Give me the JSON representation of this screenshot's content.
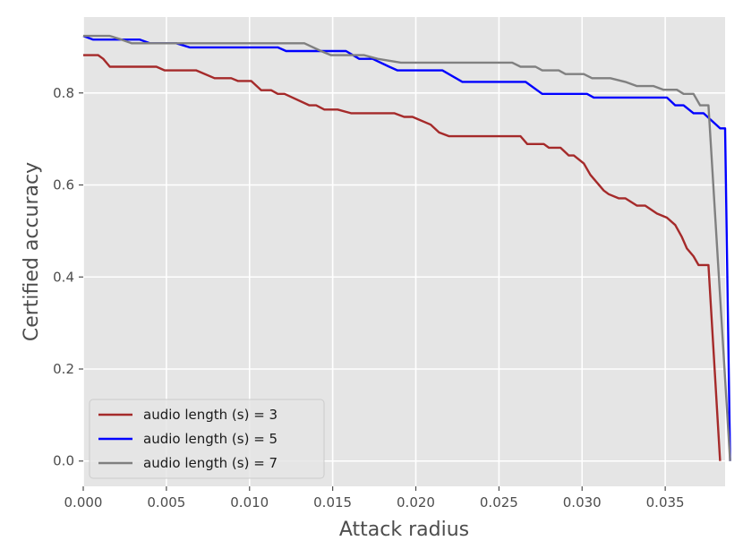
{
  "chart_data": {
    "type": "line",
    "xlabel": "Attack radius",
    "ylabel": "Certified accuracy",
    "xlim": [
      0.0,
      0.0386
    ],
    "ylim": [
      -0.055,
      0.965
    ],
    "xticks": [
      0.0,
      0.005,
      0.01,
      0.015,
      0.02,
      0.025,
      0.03,
      0.035
    ],
    "xtick_labels": [
      "0.000",
      "0.005",
      "0.010",
      "0.015",
      "0.020",
      "0.025",
      "0.030",
      "0.035"
    ],
    "yticks": [
      0.0,
      0.2,
      0.4,
      0.6,
      0.8
    ],
    "ytick_labels": [
      "0.0",
      "0.2",
      "0.4",
      "0.6",
      "0.8"
    ],
    "grid": true,
    "legend": {
      "position": "lower-left"
    },
    "series": [
      {
        "name": "audio length (s) = 3",
        "color": "#a52a2a",
        "points": [
          [
            0.0,
            0.882
          ],
          [
            0.0009,
            0.882
          ],
          [
            0.0012,
            0.874
          ],
          [
            0.0016,
            0.857
          ],
          [
            0.0044,
            0.857
          ],
          [
            0.0049,
            0.849
          ],
          [
            0.0068,
            0.849
          ],
          [
            0.0079,
            0.832
          ],
          [
            0.0089,
            0.832
          ],
          [
            0.0093,
            0.826
          ],
          [
            0.0101,
            0.826
          ],
          [
            0.0107,
            0.806
          ],
          [
            0.0113,
            0.806
          ],
          [
            0.0117,
            0.798
          ],
          [
            0.0121,
            0.798
          ],
          [
            0.0136,
            0.773
          ],
          [
            0.014,
            0.773
          ],
          [
            0.0145,
            0.764
          ],
          [
            0.0153,
            0.764
          ],
          [
            0.0161,
            0.756
          ],
          [
            0.0187,
            0.756
          ],
          [
            0.0193,
            0.748
          ],
          [
            0.0198,
            0.748
          ],
          [
            0.0209,
            0.731
          ],
          [
            0.0214,
            0.714
          ],
          [
            0.022,
            0.706
          ],
          [
            0.0263,
            0.706
          ],
          [
            0.0267,
            0.689
          ],
          [
            0.0277,
            0.689
          ],
          [
            0.028,
            0.681
          ],
          [
            0.0287,
            0.681
          ],
          [
            0.0292,
            0.664
          ],
          [
            0.0295,
            0.664
          ],
          [
            0.0301,
            0.647
          ],
          [
            0.0305,
            0.622
          ],
          [
            0.0313,
            0.588
          ],
          [
            0.0316,
            0.58
          ],
          [
            0.0322,
            0.571
          ],
          [
            0.0326,
            0.571
          ],
          [
            0.0333,
            0.555
          ],
          [
            0.0338,
            0.555
          ],
          [
            0.0345,
            0.538
          ],
          [
            0.0351,
            0.529
          ],
          [
            0.0356,
            0.513
          ],
          [
            0.036,
            0.487
          ],
          [
            0.0363,
            0.462
          ],
          [
            0.0367,
            0.445
          ],
          [
            0.037,
            0.426
          ],
          [
            0.0374,
            0.426
          ],
          [
            0.0376,
            0.426
          ],
          [
            0.0383,
            0.0
          ]
        ]
      },
      {
        "name": "audio length (s) = 5",
        "color": "#0000ff",
        "points": [
          [
            0.0,
            0.924
          ],
          [
            0.0006,
            0.916
          ],
          [
            0.0024,
            0.916
          ],
          [
            0.0034,
            0.916
          ],
          [
            0.004,
            0.908
          ],
          [
            0.0056,
            0.908
          ],
          [
            0.0064,
            0.899
          ],
          [
            0.0117,
            0.899
          ],
          [
            0.0122,
            0.891
          ],
          [
            0.0158,
            0.891
          ],
          [
            0.0166,
            0.874
          ],
          [
            0.0174,
            0.874
          ],
          [
            0.0184,
            0.857
          ],
          [
            0.0189,
            0.849
          ],
          [
            0.0216,
            0.849
          ],
          [
            0.0228,
            0.824
          ],
          [
            0.0266,
            0.824
          ],
          [
            0.0276,
            0.798
          ],
          [
            0.0303,
            0.798
          ],
          [
            0.0307,
            0.79
          ],
          [
            0.0351,
            0.79
          ],
          [
            0.0356,
            0.773
          ],
          [
            0.0361,
            0.773
          ],
          [
            0.0367,
            0.756
          ],
          [
            0.0373,
            0.756
          ],
          [
            0.0383,
            0.723
          ],
          [
            0.0386,
            0.723
          ],
          [
            0.0389,
            0.0
          ]
        ]
      },
      {
        "name": "audio length (s) = 7",
        "color": "#808080",
        "points": [
          [
            0.0,
            0.924
          ],
          [
            0.0016,
            0.924
          ],
          [
            0.0023,
            0.916
          ],
          [
            0.0029,
            0.908
          ],
          [
            0.0133,
            0.908
          ],
          [
            0.0143,
            0.891
          ],
          [
            0.0149,
            0.882
          ],
          [
            0.0169,
            0.882
          ],
          [
            0.0177,
            0.874
          ],
          [
            0.0191,
            0.866
          ],
          [
            0.0258,
            0.866
          ],
          [
            0.0263,
            0.857
          ],
          [
            0.0272,
            0.857
          ],
          [
            0.0276,
            0.849
          ],
          [
            0.0286,
            0.849
          ],
          [
            0.029,
            0.841
          ],
          [
            0.0301,
            0.841
          ],
          [
            0.0306,
            0.832
          ],
          [
            0.0317,
            0.832
          ],
          [
            0.0326,
            0.824
          ],
          [
            0.0333,
            0.815
          ],
          [
            0.0343,
            0.815
          ],
          [
            0.0349,
            0.807
          ],
          [
            0.0357,
            0.807
          ],
          [
            0.0361,
            0.798
          ],
          [
            0.0367,
            0.798
          ],
          [
            0.0371,
            0.773
          ],
          [
            0.0376,
            0.773
          ],
          [
            0.0389,
            0.0
          ]
        ]
      }
    ]
  }
}
